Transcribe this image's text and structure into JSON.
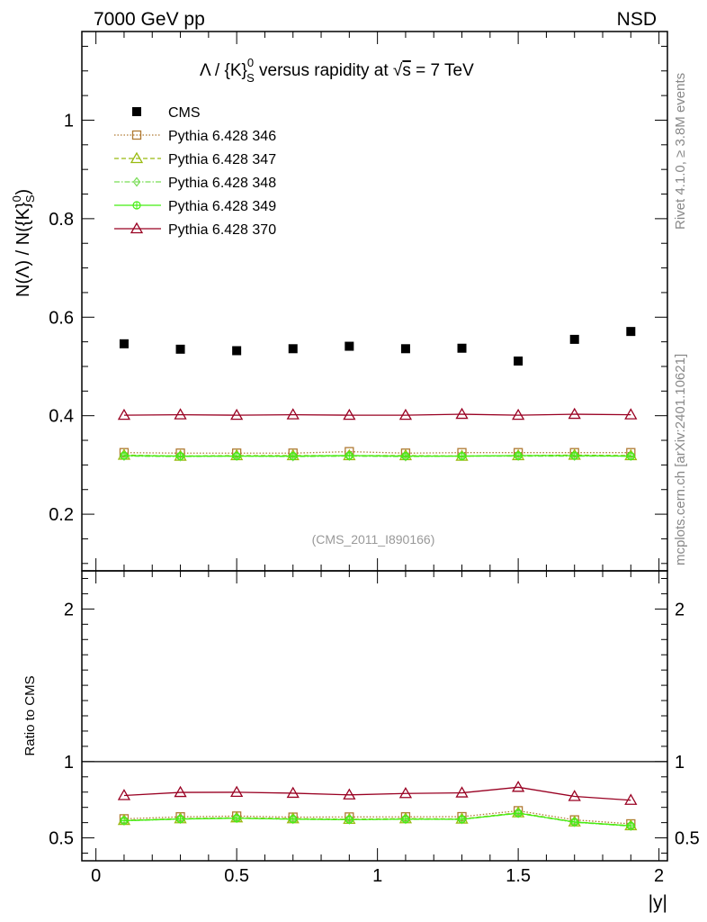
{
  "header": {
    "energy_label": "7000 GeV pp",
    "process_label": "NSD",
    "rivet_label": "Rivet 4.1.0, ≥ 3.8M events",
    "mcplots_label": "mcplots.cern.ch [arXiv:2401.10621]",
    "analysis_label": "(CMS_2011_I890166)"
  },
  "chart_data": [
    {
      "type": "scatter",
      "panel": "main",
      "title": "Λ / {K}⁰ₛ versus rapidity at √s = 7 TeV",
      "title_parts": {
        "lam": "Λ / {K}",
        "sup": "0",
        "sub": "S",
        "rest": " versus rapidity at ",
        "sqrt": "√",
        "s": "s",
        "tail": " = 7 TeV"
      },
      "ylabel": "N(Λ)  /  N({K}⁰ₛ)",
      "ylabel_parts": {
        "main": "N(Λ)  /  N({K}",
        "sup": "0",
        "sub": "S",
        "close": ")"
      },
      "xlabel": "|y|",
      "xlim": [
        -0.05,
        2.03
      ],
      "ylim": [
        0.085,
        1.18
      ],
      "xticks": [
        0,
        0.5,
        1,
        1.5,
        2
      ],
      "xticklabels": [
        "0",
        "0.5",
        "1",
        "1.5",
        "2"
      ],
      "yticks": [
        0.2,
        0.4,
        0.6,
        0.8,
        1.0
      ],
      "yticklabels": [
        "0.2",
        "0.4",
        "0.6",
        "0.8",
        "1"
      ],
      "x": [
        0.1,
        0.3,
        0.5,
        0.7,
        0.9,
        1.1,
        1.3,
        1.5,
        1.7,
        1.9
      ],
      "series": [
        {
          "name": "CMS",
          "color": "#000000",
          "marker": "filled-square",
          "line": "none",
          "values": [
            0.546,
            0.535,
            0.532,
            0.536,
            0.541,
            0.536,
            0.537,
            0.511,
            0.555,
            0.571
          ]
        },
        {
          "name": "Pythia 6.428 346",
          "color": "#b07a33",
          "marker": "open-square",
          "line": "dotted",
          "values": [
            0.325,
            0.324,
            0.324,
            0.324,
            0.327,
            0.324,
            0.325,
            0.325,
            0.325,
            0.325
          ]
        },
        {
          "name": "Pythia 6.428 347",
          "color": "#99bb11",
          "marker": "open-triangle",
          "line": "dashed",
          "values": [
            0.32,
            0.318,
            0.319,
            0.319,
            0.319,
            0.319,
            0.318,
            0.319,
            0.32,
            0.319
          ]
        },
        {
          "name": "Pythia 6.428 348",
          "color": "#77dd55",
          "marker": "open-diamond",
          "line": "dashdot",
          "values": [
            0.318,
            0.317,
            0.318,
            0.317,
            0.318,
            0.317,
            0.318,
            0.318,
            0.318,
            0.318
          ]
        },
        {
          "name": "Pythia 6.428 349",
          "color": "#44ee11",
          "marker": "open-circle-cross",
          "line": "solid",
          "values": [
            0.319,
            0.318,
            0.318,
            0.318,
            0.319,
            0.318,
            0.318,
            0.319,
            0.319,
            0.318
          ]
        },
        {
          "name": "Pythia 6.428 370",
          "color": "#990022",
          "marker": "open-triangle",
          "line": "solid",
          "values": [
            0.401,
            0.402,
            0.401,
            0.402,
            0.401,
            0.401,
            0.403,
            0.401,
            0.403,
            0.402
          ]
        }
      ]
    },
    {
      "type": "line",
      "panel": "ratio",
      "ylabel": "Ratio to CMS",
      "xlabel": "|y|",
      "xlim": [
        -0.05,
        2.03
      ],
      "ylim": [
        0.35,
        2.25
      ],
      "yticks": [
        0.5,
        1,
        2
      ],
      "yticklabels": [
        "0.5",
        "1",
        "2"
      ],
      "reference_line": 1,
      "x": [
        0.1,
        0.3,
        0.5,
        0.7,
        0.9,
        1.1,
        1.3,
        1.5,
        1.7,
        1.9
      ],
      "series": [
        {
          "name": "Pythia 6.428 346",
          "color": "#b07a33",
          "marker": "open-square",
          "line": "dotted",
          "values": [
            0.625,
            0.638,
            0.643,
            0.636,
            0.637,
            0.638,
            0.639,
            0.678,
            0.618,
            0.592
          ]
        },
        {
          "name": "Pythia 6.428 347",
          "color": "#99bb11",
          "marker": "open-triangle",
          "line": "dashed",
          "values": [
            0.615,
            0.626,
            0.632,
            0.626,
            0.622,
            0.626,
            0.624,
            0.665,
            0.605,
            0.58
          ]
        },
        {
          "name": "Pythia 6.428 348",
          "color": "#77dd55",
          "marker": "open-diamond",
          "line": "dashdot",
          "values": [
            0.612,
            0.623,
            0.629,
            0.622,
            0.619,
            0.622,
            0.621,
            0.661,
            0.602,
            0.577
          ]
        },
        {
          "name": "Pythia 6.428 349",
          "color": "#44ee11",
          "marker": "open-circle-cross",
          "line": "solid",
          "values": [
            0.613,
            0.624,
            0.629,
            0.623,
            0.62,
            0.623,
            0.622,
            0.662,
            0.604,
            0.579
          ]
        },
        {
          "name": "Pythia 6.428 370",
          "color": "#990022",
          "marker": "open-triangle",
          "line": "solid",
          "values": [
            0.778,
            0.798,
            0.799,
            0.793,
            0.782,
            0.791,
            0.795,
            0.832,
            0.772,
            0.747
          ]
        }
      ]
    }
  ]
}
